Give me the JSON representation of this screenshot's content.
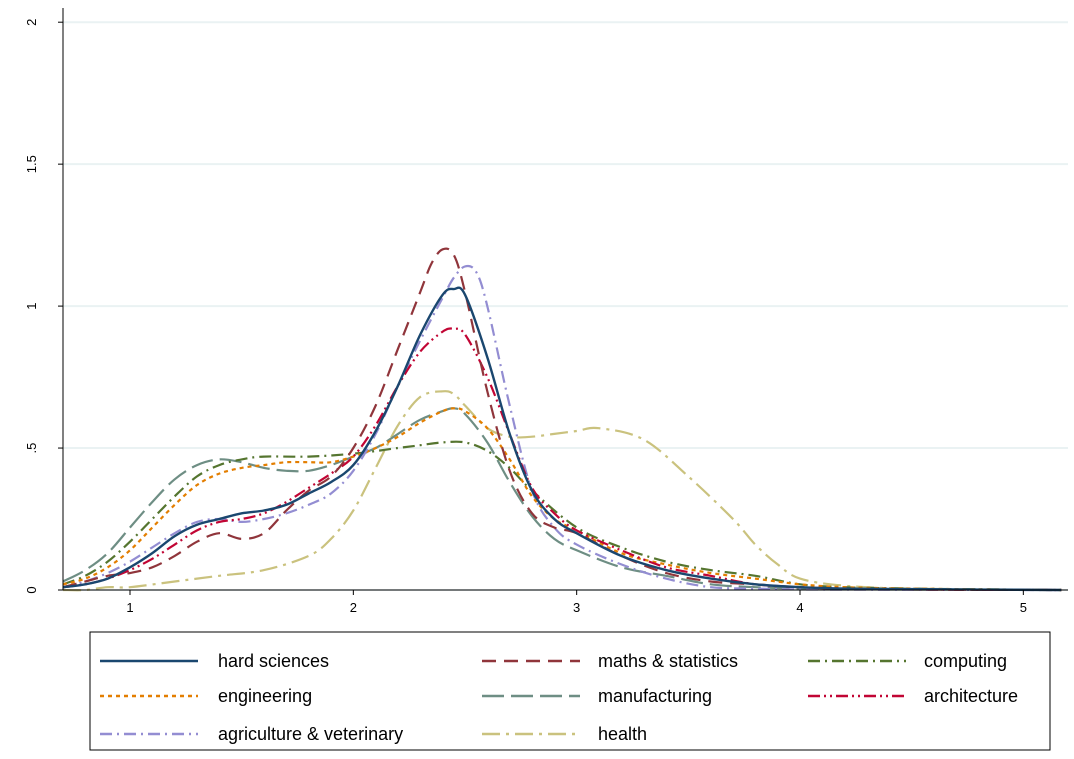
{
  "chart_data": {
    "type": "line",
    "title": "",
    "xlabel": "",
    "ylabel": "",
    "xlim": [
      0.7,
      5.2
    ],
    "ylim": [
      0,
      2.05
    ],
    "x_ticks": [
      {
        "value": 1,
        "label": "1"
      },
      {
        "value": 2,
        "label": "2"
      },
      {
        "value": 3,
        "label": "3"
      },
      {
        "value": 4,
        "label": "4"
      },
      {
        "value": 5,
        "label": "5"
      }
    ],
    "y_ticks": [
      {
        "value": 0,
        "label": "0"
      },
      {
        "value": 0.5,
        "label": ".5"
      },
      {
        "value": 1,
        "label": "1"
      },
      {
        "value": 1.5,
        "label": "1.5"
      },
      {
        "value": 2,
        "label": "2"
      }
    ],
    "grid": "horizontal",
    "legend_position": "bottom",
    "series": [
      {
        "name": "hard sciences",
        "color": "#1a476f",
        "dash": "solid",
        "x": [
          0.7,
          0.8,
          0.9,
          1.0,
          1.1,
          1.2,
          1.3,
          1.4,
          1.5,
          1.6,
          1.7,
          1.8,
          1.9,
          2.0,
          2.1,
          2.2,
          2.3,
          2.4,
          2.45,
          2.5,
          2.6,
          2.7,
          2.8,
          2.9,
          3.0,
          3.2,
          3.4,
          3.6,
          3.8,
          4.0,
          4.2,
          4.5,
          5.17
        ],
        "y": [
          0.01,
          0.02,
          0.04,
          0.08,
          0.13,
          0.19,
          0.23,
          0.25,
          0.27,
          0.28,
          0.3,
          0.34,
          0.38,
          0.44,
          0.56,
          0.72,
          0.9,
          1.04,
          1.06,
          1.04,
          0.82,
          0.55,
          0.35,
          0.25,
          0.2,
          0.12,
          0.07,
          0.04,
          0.02,
          0.01,
          0.005,
          0.003,
          0.0
        ]
      },
      {
        "name": "maths & statistics",
        "color": "#90353b",
        "dash": "long-dash",
        "x": [
          0.7,
          0.8,
          0.9,
          1.0,
          1.1,
          1.2,
          1.3,
          1.4,
          1.5,
          1.6,
          1.7,
          1.8,
          1.9,
          2.0,
          2.1,
          2.2,
          2.3,
          2.35,
          2.4,
          2.45,
          2.5,
          2.6,
          2.7,
          2.8,
          2.9,
          3.0,
          3.2,
          3.4,
          3.6,
          3.8,
          4.0,
          4.3,
          5.17
        ],
        "y": [
          0.01,
          0.03,
          0.05,
          0.06,
          0.08,
          0.12,
          0.17,
          0.2,
          0.18,
          0.2,
          0.28,
          0.35,
          0.4,
          0.5,
          0.65,
          0.85,
          1.05,
          1.15,
          1.2,
          1.18,
          1.05,
          0.7,
          0.42,
          0.27,
          0.22,
          0.2,
          0.12,
          0.06,
          0.03,
          0.02,
          0.01,
          0.003,
          0.0
        ]
      },
      {
        "name": "computing",
        "color": "#55752f",
        "dash": "dash-dot",
        "x": [
          0.7,
          0.8,
          0.9,
          1.0,
          1.1,
          1.2,
          1.3,
          1.4,
          1.5,
          1.6,
          1.8,
          2.0,
          2.2,
          2.3,
          2.4,
          2.5,
          2.6,
          2.7,
          2.8,
          3.0,
          3.2,
          3.4,
          3.6,
          3.8,
          4.0,
          4.2,
          4.5,
          5.17
        ],
        "y": [
          0.02,
          0.05,
          0.1,
          0.17,
          0.25,
          0.33,
          0.4,
          0.44,
          0.46,
          0.47,
          0.47,
          0.48,
          0.5,
          0.51,
          0.52,
          0.52,
          0.49,
          0.43,
          0.35,
          0.22,
          0.15,
          0.1,
          0.07,
          0.05,
          0.02,
          0.01,
          0.005,
          0.0
        ]
      },
      {
        "name": "engineering",
        "color": "#e37e00",
        "dash": "short-dash",
        "x": [
          0.7,
          0.8,
          0.9,
          1.0,
          1.1,
          1.2,
          1.3,
          1.4,
          1.5,
          1.6,
          1.7,
          1.8,
          1.9,
          2.0,
          2.1,
          2.2,
          2.3,
          2.4,
          2.45,
          2.5,
          2.6,
          2.7,
          2.8,
          2.9,
          3.0,
          3.2,
          3.4,
          3.6,
          3.8,
          4.0,
          4.2,
          4.5,
          5.17
        ],
        "y": [
          0.02,
          0.04,
          0.08,
          0.14,
          0.22,
          0.3,
          0.37,
          0.41,
          0.43,
          0.44,
          0.45,
          0.45,
          0.45,
          0.47,
          0.5,
          0.54,
          0.59,
          0.63,
          0.64,
          0.63,
          0.57,
          0.46,
          0.33,
          0.25,
          0.21,
          0.13,
          0.09,
          0.06,
          0.04,
          0.02,
          0.01,
          0.005,
          0.0
        ]
      },
      {
        "name": "manufacturing",
        "color": "#6e8e84",
        "dash": "longest-dash",
        "x": [
          0.7,
          0.8,
          0.9,
          1.0,
          1.1,
          1.2,
          1.3,
          1.4,
          1.5,
          1.6,
          1.7,
          1.8,
          1.9,
          2.0,
          2.1,
          2.2,
          2.3,
          2.4,
          2.45,
          2.5,
          2.6,
          2.7,
          2.8,
          2.9,
          3.0,
          3.2,
          3.4,
          3.6,
          3.8,
          4.0,
          4.3,
          5.17
        ],
        "y": [
          0.03,
          0.07,
          0.13,
          0.22,
          0.31,
          0.39,
          0.44,
          0.46,
          0.45,
          0.43,
          0.42,
          0.42,
          0.44,
          0.47,
          0.5,
          0.55,
          0.6,
          0.63,
          0.64,
          0.62,
          0.52,
          0.38,
          0.26,
          0.18,
          0.14,
          0.08,
          0.05,
          0.02,
          0.01,
          0.005,
          0.002,
          0.0
        ]
      },
      {
        "name": "architecture",
        "color": "#c10534",
        "dash": "dash-dot-dot",
        "x": [
          0.7,
          0.8,
          0.9,
          1.0,
          1.1,
          1.2,
          1.3,
          1.4,
          1.5,
          1.6,
          1.7,
          1.8,
          1.9,
          2.0,
          2.1,
          2.2,
          2.3,
          2.4,
          2.45,
          2.5,
          2.6,
          2.7,
          2.8,
          2.9,
          3.0,
          3.2,
          3.4,
          3.6,
          3.8,
          4.0,
          4.2,
          4.5,
          5.17
        ],
        "y": [
          0.01,
          0.02,
          0.04,
          0.07,
          0.11,
          0.16,
          0.21,
          0.24,
          0.25,
          0.27,
          0.31,
          0.36,
          0.41,
          0.47,
          0.58,
          0.72,
          0.84,
          0.91,
          0.92,
          0.9,
          0.75,
          0.55,
          0.36,
          0.27,
          0.21,
          0.14,
          0.08,
          0.05,
          0.02,
          0.01,
          0.005,
          0.002,
          0.0
        ]
      },
      {
        "name": "agriculture & veterinary",
        "color": "#938dd2",
        "dash": "dash-dot",
        "x": [
          0.7,
          0.8,
          0.9,
          1.0,
          1.1,
          1.2,
          1.3,
          1.4,
          1.5,
          1.6,
          1.7,
          1.8,
          1.9,
          2.0,
          2.1,
          2.2,
          2.3,
          2.4,
          2.45,
          2.5,
          2.55,
          2.6,
          2.7,
          2.8,
          2.9,
          3.0,
          3.2,
          3.4,
          3.6,
          3.8,
          4.0,
          4.3,
          5.17
        ],
        "y": [
          0.01,
          0.03,
          0.06,
          0.1,
          0.15,
          0.2,
          0.24,
          0.25,
          0.24,
          0.25,
          0.27,
          0.3,
          0.34,
          0.42,
          0.55,
          0.72,
          0.88,
          1.03,
          1.1,
          1.14,
          1.12,
          1.0,
          0.65,
          0.35,
          0.22,
          0.16,
          0.09,
          0.04,
          0.01,
          0.005,
          0.002,
          0.001,
          0.0
        ]
      },
      {
        "name": "health",
        "color": "#cac27e",
        "dash": "long-dash-dot",
        "x": [
          0.7,
          0.8,
          0.9,
          1.0,
          1.2,
          1.4,
          1.6,
          1.8,
          1.9,
          2.0,
          2.1,
          2.2,
          2.3,
          2.4,
          2.45,
          2.5,
          2.6,
          2.7,
          2.8,
          2.9,
          3.0,
          3.1,
          3.3,
          3.5,
          3.7,
          3.8,
          3.9,
          4.0,
          4.2,
          4.5,
          5.17
        ],
        "y": [
          0.0,
          0.0,
          0.01,
          0.01,
          0.03,
          0.05,
          0.07,
          0.12,
          0.18,
          0.28,
          0.43,
          0.58,
          0.68,
          0.7,
          0.69,
          0.65,
          0.57,
          0.54,
          0.54,
          0.55,
          0.56,
          0.57,
          0.53,
          0.4,
          0.25,
          0.16,
          0.09,
          0.04,
          0.015,
          0.005,
          0.0
        ]
      }
    ]
  }
}
